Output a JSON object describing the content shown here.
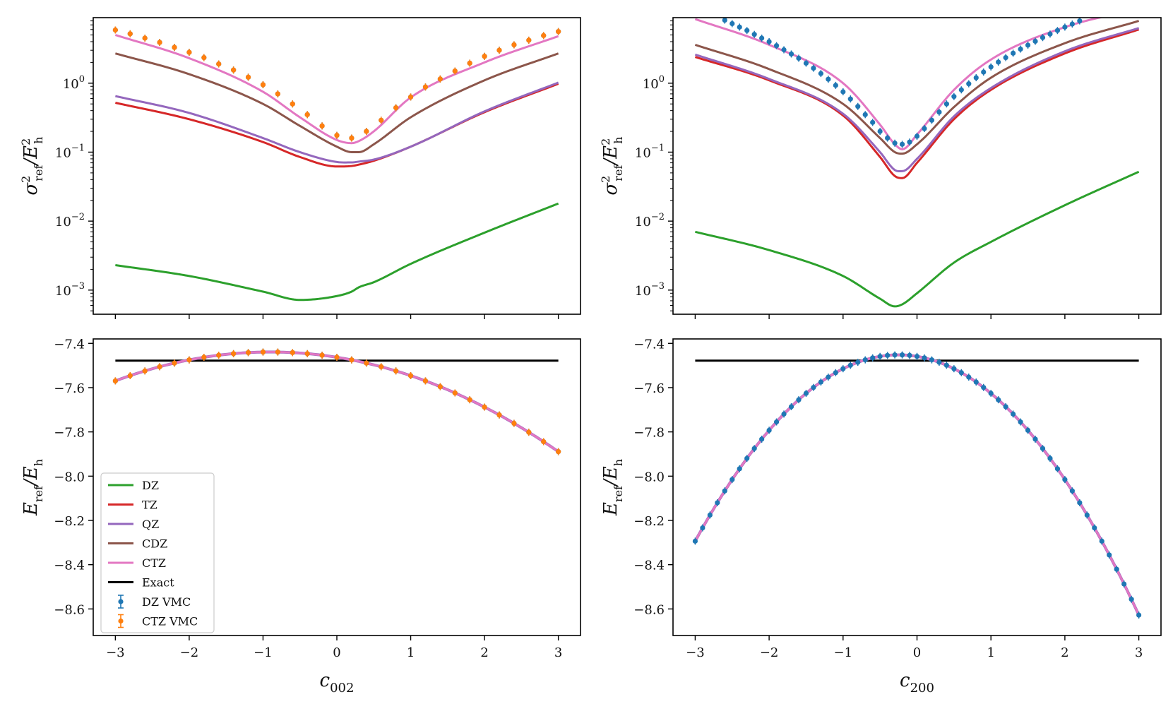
{
  "chart_data": [
    {
      "type": "line",
      "panel": "top-left",
      "yscale": "log",
      "ylabel": "σ²_ref/E²_h",
      "xlabel": "",
      "xlim": [
        -3.3,
        3.3
      ],
      "ylim_log10": [
        -3.35,
        0.95
      ],
      "x_ticks": [
        -3,
        -2,
        -1,
        0,
        1,
        2,
        3
      ],
      "y_ticks": [
        {
          "exp": 0,
          "label": "10",
          "sup": "0"
        },
        {
          "exp": -1,
          "label": "10",
          "sup": "−1"
        },
        {
          "exp": -2,
          "label": "10",
          "sup": "−2"
        },
        {
          "exp": -3,
          "label": "10",
          "sup": "−3"
        }
      ],
      "x": [
        -3,
        -2,
        -1,
        -0.5,
        0,
        0.2,
        0.3,
        0.5,
        1,
        2,
        3
      ],
      "series": [
        {
          "name": "DZ",
          "color": "#2ca02c",
          "values": [
            0.0023,
            0.0016,
            0.00095,
            0.00072,
            0.00082,
            0.00095,
            0.0011,
            0.0013,
            0.0024,
            0.0068,
            0.018
          ]
        },
        {
          "name": "TZ",
          "color": "#d62728",
          "values": [
            0.52,
            0.3,
            0.14,
            0.085,
            0.062,
            0.063,
            0.066,
            0.075,
            0.12,
            0.38,
            0.98
          ]
        },
        {
          "name": "QZ",
          "color": "#9467bd",
          "values": [
            0.65,
            0.37,
            0.16,
            0.1,
            0.072,
            0.071,
            0.073,
            0.078,
            0.12,
            0.39,
            1.02
          ]
        },
        {
          "name": "CDZ",
          "color": "#8c564b",
          "values": [
            2.7,
            1.35,
            0.5,
            0.24,
            0.12,
            0.1,
            0.1,
            0.13,
            0.32,
            1.1,
            2.7
          ]
        },
        {
          "name": "CTZ",
          "color": "#e377c2",
          "values": [
            5.0,
            2.3,
            0.75,
            0.32,
            0.15,
            0.135,
            0.145,
            0.2,
            0.62,
            2.0,
            4.8
          ]
        }
      ],
      "points": [
        {
          "name": "DZ VMC",
          "color": "#1f77b4",
          "x": [
            -3.0,
            -2.8,
            -2.6,
            -2.4,
            -2.2,
            -2.0,
            -1.8,
            -1.6,
            -1.4,
            -1.2,
            -1.0,
            -0.8,
            -0.6,
            -0.4,
            -0.2,
            0.0,
            0.2,
            0.4,
            0.6,
            0.8,
            1.0,
            1.2,
            1.4,
            1.6,
            1.8,
            2.0,
            2.2,
            2.4,
            2.6,
            2.8,
            3.0
          ],
          "values": [
            5.9,
            5.2,
            4.5,
            3.9,
            3.3,
            2.8,
            2.35,
            1.9,
            1.55,
            1.22,
            0.95,
            0.7,
            0.5,
            0.35,
            0.24,
            0.175,
            0.16,
            0.2,
            0.29,
            0.44,
            0.63,
            0.88,
            1.15,
            1.5,
            1.95,
            2.45,
            3.0,
            3.6,
            4.2,
            4.9,
            5.6
          ]
        },
        {
          "name": "CTZ VMC",
          "color": "#ff7f0e",
          "x": [
            -3.0,
            -2.8,
            -2.6,
            -2.4,
            -2.2,
            -2.0,
            -1.8,
            -1.6,
            -1.4,
            -1.2,
            -1.0,
            -0.8,
            -0.6,
            -0.4,
            -0.2,
            0.0,
            0.2,
            0.4,
            0.6,
            0.8,
            1.0,
            1.2,
            1.4,
            1.6,
            1.8,
            2.0,
            2.2,
            2.4,
            2.6,
            2.8,
            3.0
          ],
          "values": [
            5.9,
            5.2,
            4.5,
            3.9,
            3.3,
            2.8,
            2.35,
            1.9,
            1.55,
            1.22,
            0.95,
            0.7,
            0.5,
            0.35,
            0.24,
            0.175,
            0.16,
            0.2,
            0.29,
            0.44,
            0.63,
            0.88,
            1.15,
            1.5,
            1.95,
            2.45,
            3.0,
            3.6,
            4.2,
            4.9,
            5.6
          ]
        }
      ]
    },
    {
      "type": "line",
      "panel": "top-right",
      "yscale": "log",
      "ylabel": "σ²_ref/E²_h",
      "xlabel": "",
      "xlim": [
        -3.3,
        3.3
      ],
      "ylim_log10": [
        -3.35,
        0.95
      ],
      "x_ticks": [
        -3,
        -2,
        -1,
        0,
        1,
        2,
        3
      ],
      "y_ticks": [
        {
          "exp": 0,
          "label": "10",
          "sup": "0"
        },
        {
          "exp": -1,
          "label": "10",
          "sup": "−1"
        },
        {
          "exp": -2,
          "label": "10",
          "sup": "−2"
        },
        {
          "exp": -3,
          "label": "10",
          "sup": "−3"
        }
      ],
      "x": [
        -3,
        -2,
        -1,
        -0.5,
        -0.3,
        -0.2,
        0,
        0.5,
        1,
        2,
        3
      ],
      "series": [
        {
          "name": "DZ",
          "color": "#2ca02c",
          "values": [
            0.007,
            0.0038,
            0.0016,
            0.00075,
            0.00058,
            0.00062,
            0.0009,
            0.0025,
            0.005,
            0.017,
            0.052
          ]
        },
        {
          "name": "TZ",
          "color": "#d62728",
          "values": [
            2.4,
            1.1,
            0.34,
            0.085,
            0.045,
            0.042,
            0.07,
            0.3,
            0.8,
            2.7,
            6.0
          ]
        },
        {
          "name": "QZ",
          "color": "#9467bd",
          "values": [
            2.6,
            1.15,
            0.36,
            0.1,
            0.055,
            0.053,
            0.08,
            0.33,
            0.85,
            2.9,
            6.3
          ]
        },
        {
          "name": "CDZ",
          "color": "#8c564b",
          "values": [
            3.6,
            1.6,
            0.5,
            0.16,
            0.1,
            0.095,
            0.13,
            0.45,
            1.2,
            3.8,
            8.0
          ]
        },
        {
          "name": "CTZ",
          "color": "#e377c2",
          "values": [
            8.5,
            3.6,
            1.0,
            0.25,
            0.13,
            0.11,
            0.18,
            0.8,
            2.2,
            6.5,
            12.0
          ]
        }
      ],
      "points": [
        {
          "name": "DZ VMC",
          "color": "#1f77b4",
          "x": [
            -2.6,
            -2.5,
            -2.4,
            -2.3,
            -2.2,
            -2.1,
            -2.0,
            -1.9,
            -1.8,
            -1.7,
            -1.6,
            -1.5,
            -1.4,
            -1.3,
            -1.2,
            -1.1,
            -1.0,
            -0.9,
            -0.8,
            -0.7,
            -0.6,
            -0.5,
            -0.4,
            -0.3,
            -0.2,
            -0.1,
            0.0,
            0.1,
            0.2,
            0.3,
            0.4,
            0.5,
            0.6,
            0.7,
            0.8,
            0.9,
            1.0,
            1.1,
            1.2,
            1.3,
            1.4,
            1.5,
            1.6,
            1.7,
            1.8,
            1.9,
            2.0,
            2.1,
            2.2
          ],
          "values": [
            8.2,
            7.3,
            6.5,
            5.8,
            5.1,
            4.5,
            4.0,
            3.5,
            3.05,
            2.65,
            2.3,
            1.95,
            1.65,
            1.38,
            1.14,
            0.93,
            0.75,
            0.59,
            0.46,
            0.35,
            0.27,
            0.2,
            0.16,
            0.135,
            0.13,
            0.14,
            0.17,
            0.22,
            0.29,
            0.38,
            0.5,
            0.64,
            0.8,
            0.98,
            1.2,
            1.45,
            1.72,
            2.02,
            2.35,
            2.72,
            3.12,
            3.56,
            4.05,
            4.58,
            5.15,
            5.8,
            6.5,
            7.2,
            8.0
          ]
        }
      ]
    },
    {
      "type": "line",
      "panel": "bottom-left",
      "yscale": "linear",
      "ylabel": "E_ref/E_h",
      "xlabel": "c002",
      "xlim": [
        -3.3,
        3.3
      ],
      "ylim": [
        -8.72,
        -7.38
      ],
      "x_ticks": [
        -3,
        -2,
        -1,
        0,
        1,
        2,
        3
      ],
      "y_ticks": [
        -7.4,
        -7.6,
        -7.8,
        -8.0,
        -8.2,
        -8.4,
        -8.6
      ],
      "exact": {
        "name": "Exact",
        "color": "#000000",
        "value": -7.478
      },
      "model": {
        "name": "CTZ",
        "color": "#e377c2",
        "a": -7.439,
        "center": -0.9,
        "k": 0.0296
      },
      "points": [
        {
          "name": "DZ VMC",
          "color": "#1f77b4"
        },
        {
          "name": "CTZ VMC",
          "color": "#ff7f0e"
        }
      ]
    },
    {
      "type": "line",
      "panel": "bottom-right",
      "yscale": "linear",
      "ylabel": "E_ref/E_h",
      "xlabel": "c200",
      "xlim": [
        -3.3,
        3.3
      ],
      "ylim": [
        -8.72,
        -7.38
      ],
      "x_ticks": [
        -3,
        -2,
        -1,
        0,
        1,
        2,
        3
      ],
      "y_ticks": [
        -7.4,
        -7.6,
        -7.8,
        -8.0,
        -8.2,
        -8.4,
        -8.6
      ],
      "exact": {
        "name": "Exact",
        "color": "#000000",
        "value": -7.478
      },
      "model": {
        "name": "CTZ",
        "color": "#e377c2",
        "a": -7.452,
        "center": -0.25,
        "k": 0.1113
      },
      "points": [
        {
          "name": "DZ VMC",
          "color": "#1f77b4"
        }
      ]
    }
  ],
  "legend": {
    "placement": "lower-left",
    "entries": [
      {
        "label": "DZ",
        "kind": "line",
        "color": "#2ca02c"
      },
      {
        "label": "TZ",
        "kind": "line",
        "color": "#d62728"
      },
      {
        "label": "QZ",
        "kind": "line",
        "color": "#9467bd"
      },
      {
        "label": "CDZ",
        "kind": "line",
        "color": "#8c564b"
      },
      {
        "label": "CTZ",
        "kind": "line",
        "color": "#e377c2"
      },
      {
        "label": "Exact",
        "kind": "line",
        "color": "#000000"
      },
      {
        "label": "DZ VMC",
        "kind": "errorbar",
        "color": "#1f77b4"
      },
      {
        "label": "CTZ VMC",
        "kind": "errorbar",
        "color": "#ff7f0e"
      }
    ]
  }
}
